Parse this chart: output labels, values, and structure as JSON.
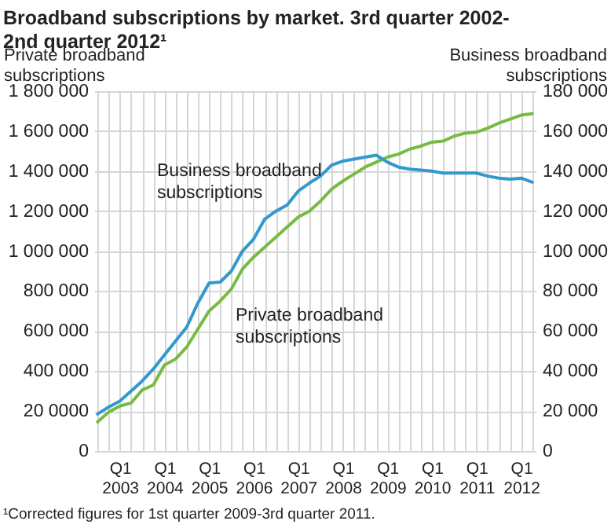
{
  "chart_data": {
    "type": "line",
    "title": "Broadband subscriptions by market. 3rd quarter 2002-2nd quarter 2012¹",
    "ylabel": "Private broadband subscriptions",
    "y2label": "Business broadband subscriptions",
    "categories": [
      null,
      null,
      "Q1 2003",
      null,
      null,
      null,
      "Q1 2004",
      null,
      null,
      null,
      "Q1 2005",
      null,
      null,
      null,
      "Q1 2006",
      null,
      null,
      null,
      "Q1 2007",
      null,
      null,
      null,
      "Q1 2008",
      null,
      null,
      null,
      "Q1 2009",
      null,
      null,
      null,
      "Q1 2010",
      null,
      null,
      null,
      "Q1 2011",
      null,
      null,
      null,
      "Q1 2012",
      null
    ],
    "series": [
      {
        "name": "Private broadband subscriptions",
        "color": "#77bb44",
        "values": [
          145000,
          195000,
          225000,
          240000,
          305000,
          330000,
          430000,
          460000,
          520000,
          610000,
          700000,
          750000,
          810000,
          910000,
          970000,
          1020000,
          1070000,
          1120000,
          1170000,
          1200000,
          1250000,
          1310000,
          1350000,
          1385000,
          1420000,
          1445000,
          1470000,
          1485000,
          1510000,
          1525000,
          1545000,
          1550000,
          1575000,
          1590000,
          1595000,
          1615000,
          1640000,
          1660000,
          1680000,
          1687000
        ]
      },
      {
        "name": "Business broadband subscriptions",
        "color": "#3399cc",
        "axis": "y2",
        "values": [
          18500,
          22000,
          25000,
          30000,
          35000,
          41000,
          48000,
          55000,
          62000,
          74000,
          84000,
          84500,
          90000,
          100000,
          106000,
          116000,
          120000,
          123000,
          130000,
          134000,
          137500,
          143000,
          145000,
          146000,
          147000,
          148000,
          144500,
          142000,
          141000,
          140500,
          140000,
          139000,
          139000,
          139000,
          139000,
          137500,
          136500,
          136000,
          136500,
          134500
        ]
      }
    ],
    "ylim": [
      0,
      1800000
    ],
    "yticks": [
      0,
      {
        "value": 200000,
        "label": "20 0000"
      },
      {
        "value": 400000,
        "label": "400 000"
      },
      {
        "value": 600000,
        "label": "600 000"
      },
      {
        "value": 800000,
        "label": "800 000"
      },
      {
        "value": 1000000,
        "label": "1 000 000"
      },
      {
        "value": 1200000,
        "label": "1 200 000"
      },
      {
        "value": 1400000,
        "label": "1 400 000"
      },
      {
        "value": 1600000,
        "label": "1 600 000"
      },
      {
        "value": 1800000,
        "label": "1 800 000"
      }
    ],
    "y2lim": [
      0,
      180000
    ],
    "y2ticks": [
      0,
      {
        "value": 20000,
        "label": "20 000"
      },
      {
        "value": 40000,
        "label": "40 000"
      },
      {
        "value": 60000,
        "label": "60 000"
      },
      {
        "value": 80000,
        "label": "80 000"
      },
      {
        "value": 100000,
        "label": "100 000"
      },
      {
        "value": 120000,
        "label": "120 000"
      },
      {
        "value": 140000,
        "label": "140 000"
      },
      {
        "value": 160000,
        "label": "160 000"
      },
      {
        "value": 180000,
        "label": "180 000"
      }
    ],
    "grid": true,
    "annotations": [
      "¹Corrected figures for 1st quarter 2009-3rd quarter 2011."
    ]
  }
}
